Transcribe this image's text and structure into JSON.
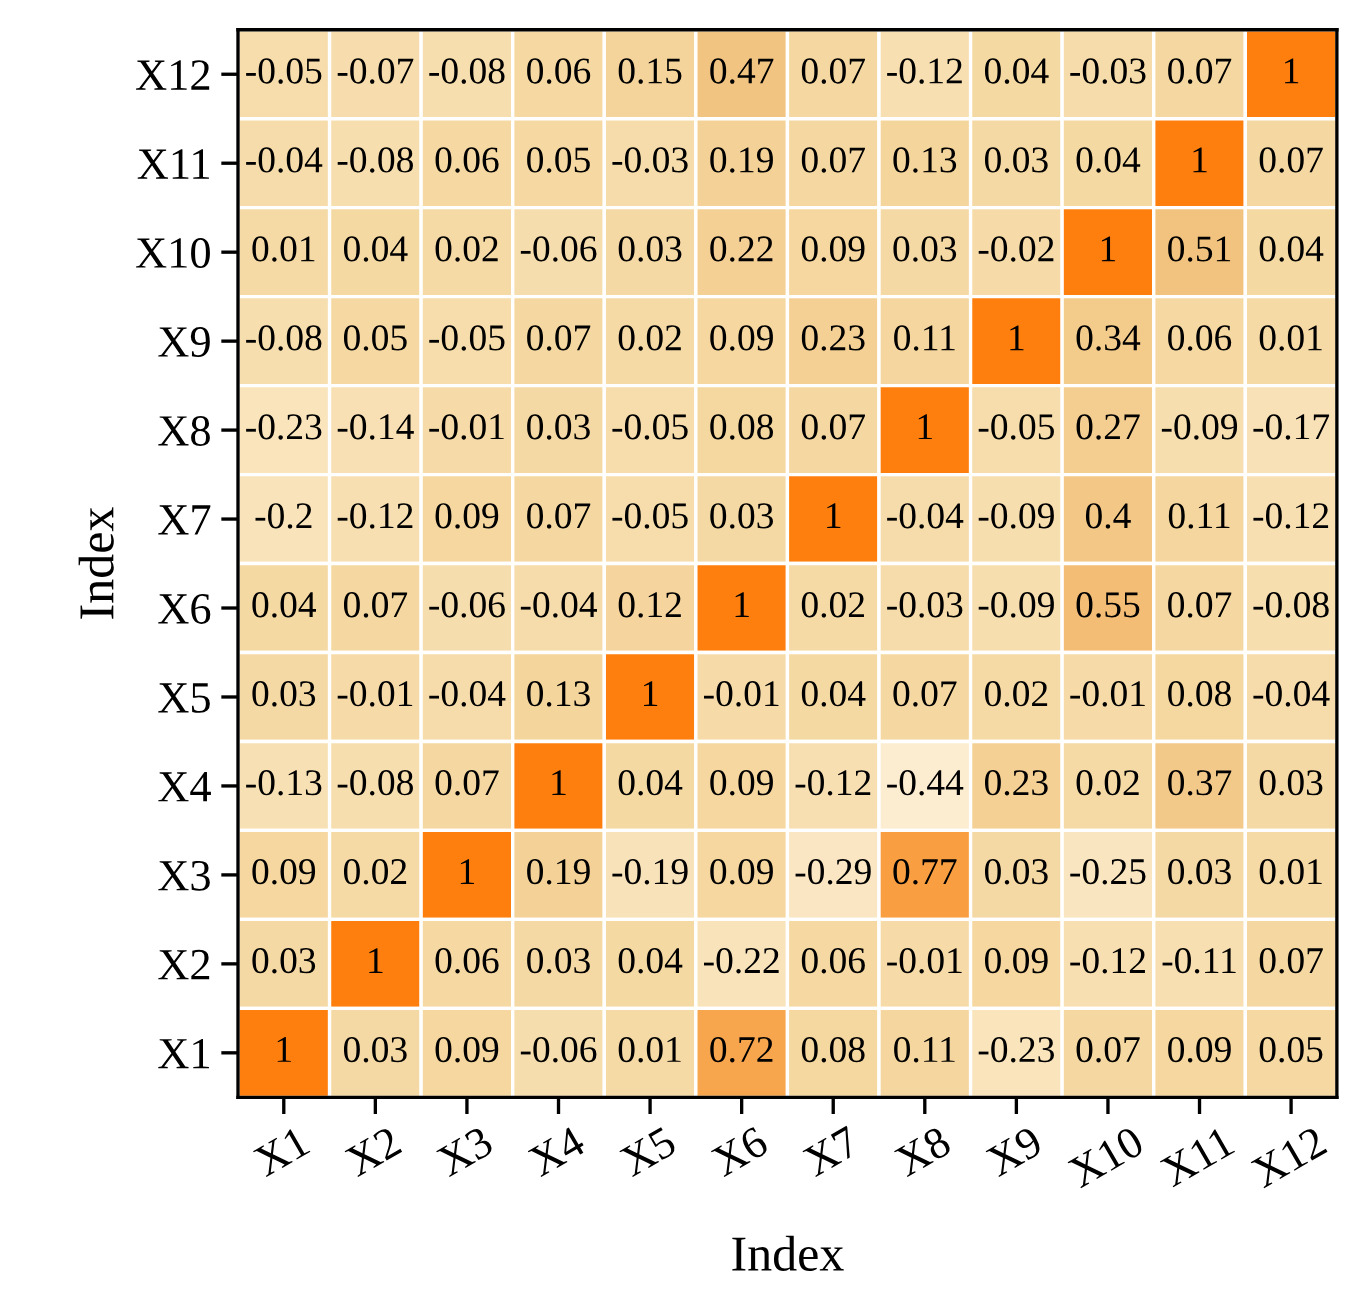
{
  "chart_data": {
    "type": "heatmap",
    "xlabel": "Index",
    "ylabel": "Index",
    "categories": [
      "X1",
      "X2",
      "X3",
      "X4",
      "X5",
      "X6",
      "X7",
      "X8",
      "X9",
      "X10",
      "X11",
      "X12"
    ],
    "y_categories": [
      "X12",
      "X11",
      "X10",
      "X9",
      "X8",
      "X7",
      "X6",
      "X5",
      "X4",
      "X3",
      "X2",
      "X1"
    ],
    "cells": [
      [
        -0.05,
        -0.07,
        -0.08,
        0.06,
        0.15,
        0.47,
        0.07,
        -0.12,
        0.04,
        -0.03,
        0.07,
        1
      ],
      [
        -0.04,
        -0.08,
        0.06,
        0.05,
        -0.03,
        0.19,
        0.07,
        0.13,
        0.03,
        0.04,
        1,
        0.07
      ],
      [
        0.01,
        0.04,
        0.02,
        -0.06,
        0.03,
        0.22,
        0.09,
        0.03,
        -0.02,
        1,
        0.51,
        0.04
      ],
      [
        -0.08,
        0.05,
        -0.05,
        0.07,
        0.02,
        0.09,
        0.23,
        0.11,
        1,
        0.34,
        0.06,
        0.01
      ],
      [
        -0.23,
        -0.14,
        -0.01,
        0.03,
        -0.05,
        0.08,
        0.07,
        1,
        -0.05,
        0.27,
        -0.09,
        -0.17
      ],
      [
        -0.2,
        -0.12,
        0.09,
        0.07,
        -0.05,
        0.03,
        1,
        -0.04,
        -0.09,
        0.4,
        0.11,
        -0.12
      ],
      [
        0.04,
        0.07,
        -0.06,
        -0.04,
        0.12,
        1,
        0.02,
        -0.03,
        -0.09,
        0.55,
        0.07,
        -0.08
      ],
      [
        0.03,
        -0.01,
        -0.04,
        0.13,
        1,
        -0.01,
        0.04,
        0.07,
        0.02,
        -0.01,
        0.08,
        -0.04
      ],
      [
        -0.13,
        -0.08,
        0.07,
        1,
        0.04,
        0.09,
        -0.12,
        -0.44,
        0.23,
        0.02,
        0.37,
        0.03
      ],
      [
        0.09,
        0.02,
        1,
        0.19,
        -0.19,
        0.09,
        -0.29,
        0.77,
        0.03,
        -0.25,
        0.03,
        0.01
      ],
      [
        0.03,
        1,
        0.06,
        0.03,
        0.04,
        -0.22,
        0.06,
        -0.01,
        0.09,
        -0.12,
        -0.11,
        0.07
      ],
      [
        1,
        0.03,
        0.09,
        -0.06,
        0.01,
        0.72,
        0.08,
        0.11,
        -0.23,
        0.07,
        0.09,
        0.05
      ]
    ],
    "data_labels": true,
    "grid": false
  }
}
